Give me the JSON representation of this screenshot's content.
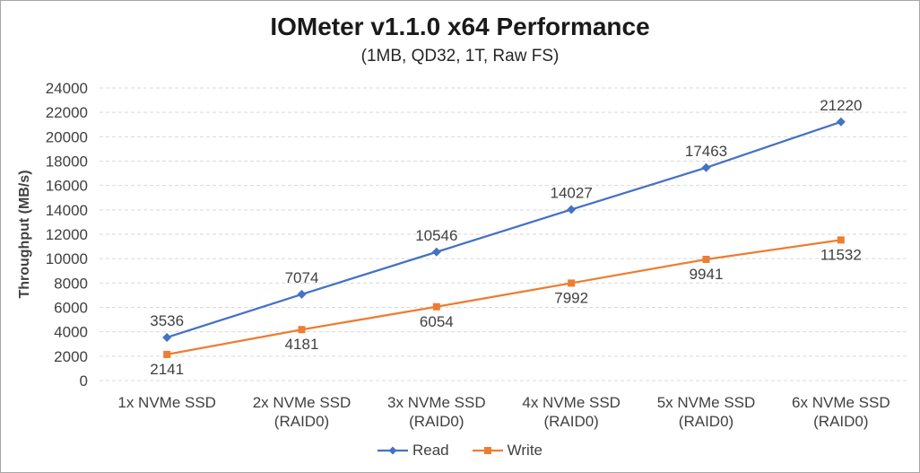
{
  "frame": {
    "border_color": "#A6A6A6",
    "background_color": "#FFFFFF"
  },
  "chart_data": {
    "type": "line",
    "title": "IOMeter v1.1.0 x64 Performance",
    "subtitle": "(1MB, QD32, 1T, Raw FS)",
    "xlabel": "",
    "ylabel": "Throughput (MB/s)",
    "categories": [
      [
        "1x NVMe SSD"
      ],
      [
        "2x NVMe SSD",
        "(RAID0)"
      ],
      [
        "3x NVMe SSD",
        "(RAID0)"
      ],
      [
        "4x NVMe SSD",
        "(RAID0)"
      ],
      [
        "5x NVMe SSD",
        "(RAID0)"
      ],
      [
        "6x NVMe SSD",
        "(RAID0)"
      ]
    ],
    "series": [
      {
        "name": "Read",
        "values": [
          3536,
          7074,
          10546,
          14027,
          17463,
          21220
        ],
        "color": "#4472C4",
        "marker": "diamond",
        "label_position": "above"
      },
      {
        "name": "Write",
        "values": [
          2141,
          4181,
          6054,
          7992,
          9941,
          11532
        ],
        "color": "#ED7D31",
        "marker": "square",
        "label_position": "below"
      }
    ],
    "ylim": [
      0,
      24000
    ],
    "ytick_step": 2000,
    "grid": "horizontal-dashed",
    "gridline_color": "#D9D9D9",
    "tick_label_color": "#404040",
    "data_label_color": "#404040",
    "data_labels": true,
    "legend_position": "bottom"
  }
}
